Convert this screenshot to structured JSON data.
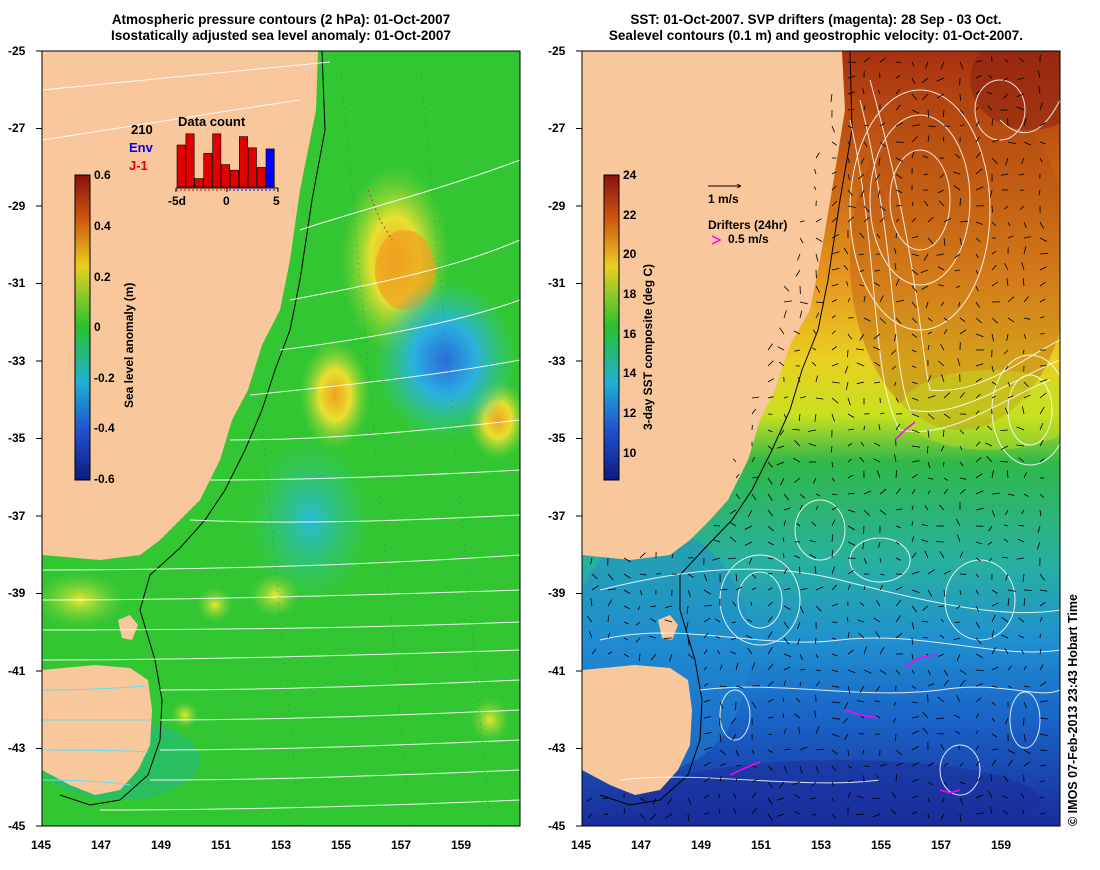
{
  "left_panel": {
    "title_line1": "Atmospheric pressure contours (2 hPa): 01-Oct-2007",
    "title_line2": "Isostatically adjusted sea level anomaly: 01-Oct-2007",
    "lat_ticks": [
      "-25",
      "-27",
      "-29",
      "-31",
      "-33",
      "-35",
      "-37",
      "-39",
      "-41",
      "-43",
      "-45"
    ],
    "lon_ticks": [
      "145",
      "147",
      "149",
      "151",
      "153",
      "155",
      "157",
      "159"
    ],
    "colorbar_label": "Sea level anomaly (m)",
    "colorbar_ticks": [
      "0.6",
      "0.4",
      "0.2",
      "0",
      "-0.2",
      "-0.4",
      "-0.6"
    ],
    "inset": {
      "title": "Data count",
      "count": "210",
      "env_label": "Env",
      "j1_label": "J-1",
      "xticks": [
        "-5d",
        "0",
        "5"
      ],
      "bars": [
        0.75,
        0.95,
        0.15,
        0.6,
        0.95,
        0.4,
        0.3,
        0.9,
        0.7,
        0.35,
        0.68
      ],
      "bar_color": "#e00000",
      "env_bar_color": "#0000ff"
    }
  },
  "right_panel": {
    "title_line1": "SST: 01-Oct-2007. SVP drifters (magenta): 28 Sep - 03 Oct.",
    "title_line2": "Sealevel contours (0.1 m) and geostrophic velocity: 01-Oct-2007.",
    "lat_ticks": [
      "-25",
      "-27",
      "-29",
      "-31",
      "-33",
      "-35",
      "-37",
      "-39",
      "-41",
      "-43",
      "-45"
    ],
    "lon_ticks": [
      "145",
      "147",
      "149",
      "151",
      "153",
      "155",
      "157",
      "159"
    ],
    "colorbar_label": "3-day SST composite (deg C)",
    "colorbar_ticks": [
      "24",
      "22",
      "20",
      "18",
      "16",
      "14",
      "12",
      "10"
    ],
    "velocity_legend": "1 m/s",
    "drifters_legend": "Drifters (24hr)",
    "drifters_speed": "0.5 m/s"
  },
  "credit": "© IMOS 07-Feb-2013 23:43 Hobart Time",
  "colors": {
    "land": "#f9c79c",
    "sla_base": "#33c633",
    "sst_warm": "#c45a10",
    "sst_cool": "#1a70c8",
    "contour": "#ffffff",
    "drifter": "#ff00ff"
  }
}
